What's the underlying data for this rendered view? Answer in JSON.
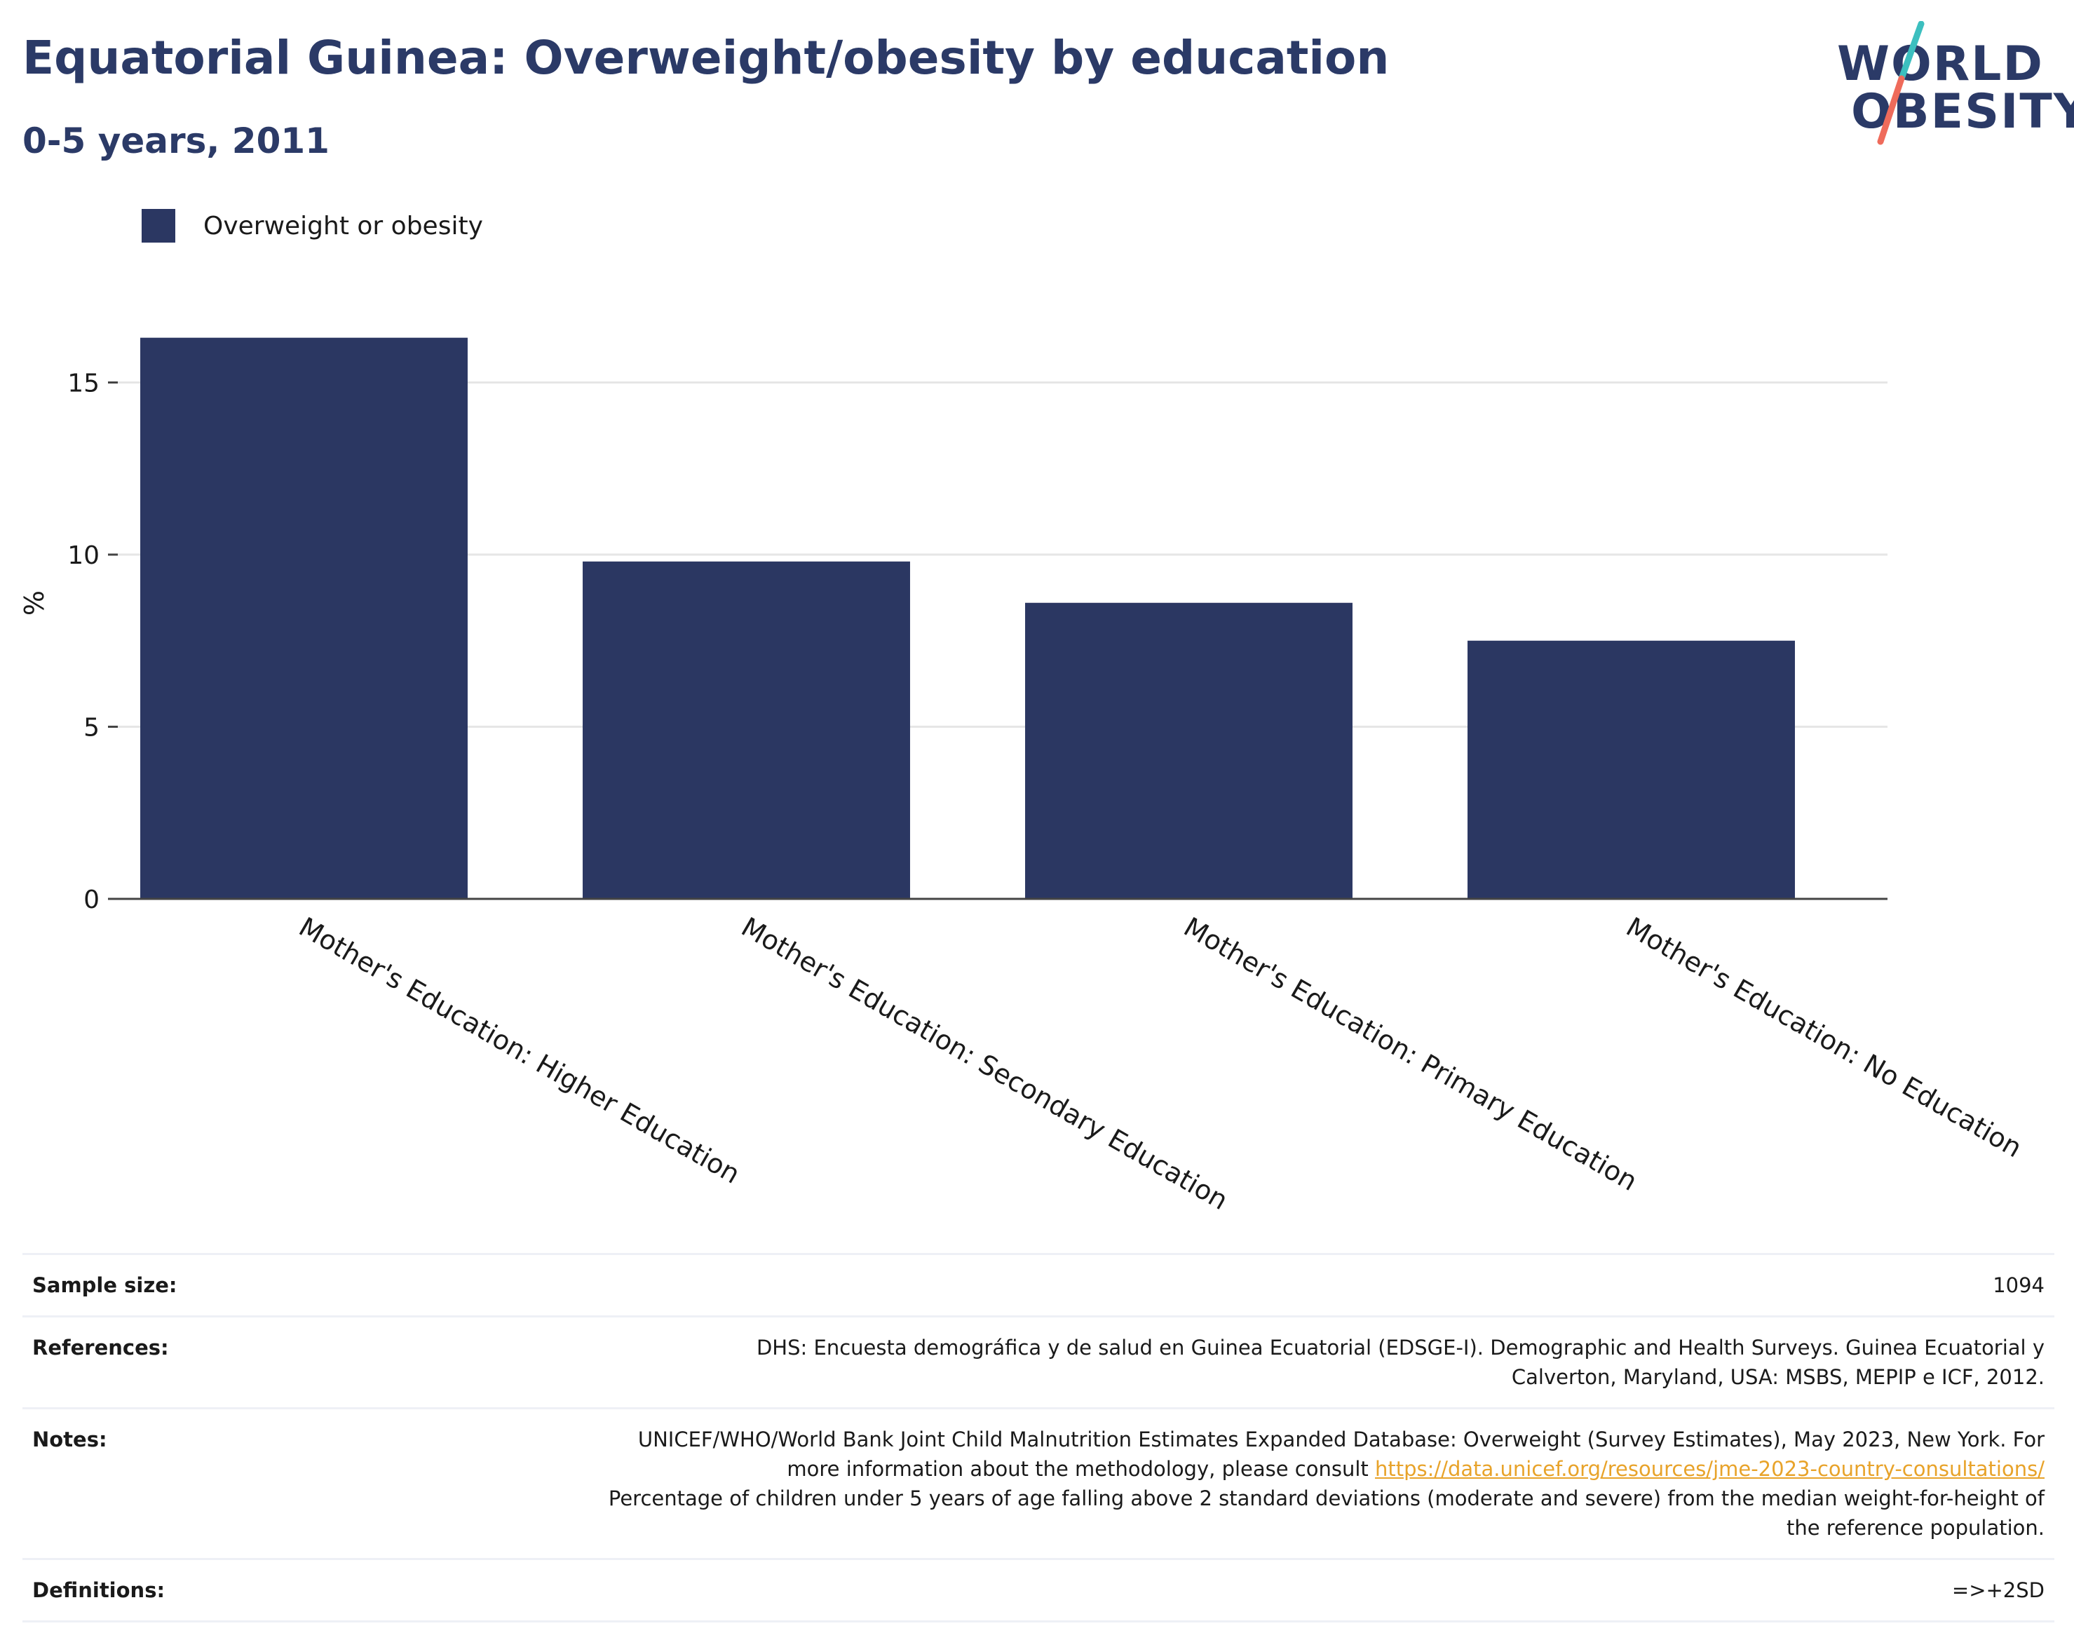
{
  "header": {
    "title": "Equatorial Guinea: Overweight/obesity by education",
    "subtitle": "0-5 years, 2011",
    "logo_line1": "WORLD",
    "logo_line2": "OBESITY"
  },
  "colors": {
    "bar": "#2b3762",
    "title": "#2b3a67",
    "grid": "#e6e6e6",
    "axis": "#444444",
    "link": "#e8a32a",
    "logo_teal": "#3cbfbf",
    "logo_coral": "#ef6b5b"
  },
  "chart_data": {
    "type": "bar",
    "categories": [
      "Mother's Education: Higher Education",
      "Mother's Education: Secondary Education",
      "Mother's Education: Primary Education",
      "Mother's Education: No Education"
    ],
    "series": [
      {
        "name": "Overweight or obesity",
        "values": [
          16.3,
          9.8,
          8.6,
          7.5
        ]
      }
    ],
    "ylabel": "%",
    "yticks": [
      0,
      5,
      10,
      15
    ],
    "ylim": [
      0,
      17
    ],
    "legend_position": "top-left",
    "grid": true
  },
  "info": {
    "sample_size_label": "Sample size:",
    "sample_size_value": "1094",
    "references_label": "References:",
    "references_value": "DHS: Encuesta demográfica y de salud en Guinea Ecuatorial (EDSGE-I). Demographic and Health Surveys. Guinea Ecuatorial y Calverton, Maryland, USA: MSBS, MEPIP e ICF, 2012.",
    "notes_label": "Notes:",
    "notes_text": "UNICEF/WHO/World Bank Joint Child Malnutrition Estimates Expanded Database: Overweight (Survey Estimates), May 2023, New York. For more information about the methodology, please consult",
    "notes_link": "https://data.unicef.org/resources/jme-2023-country-consultations/",
    "notes_text2": "Percentage of children under 5 years of age falling above 2 standard deviations (moderate and severe) from the median weight-for-height of the reference population.",
    "definitions_label": "Definitions:",
    "definitions_value": "=>+2SD"
  }
}
